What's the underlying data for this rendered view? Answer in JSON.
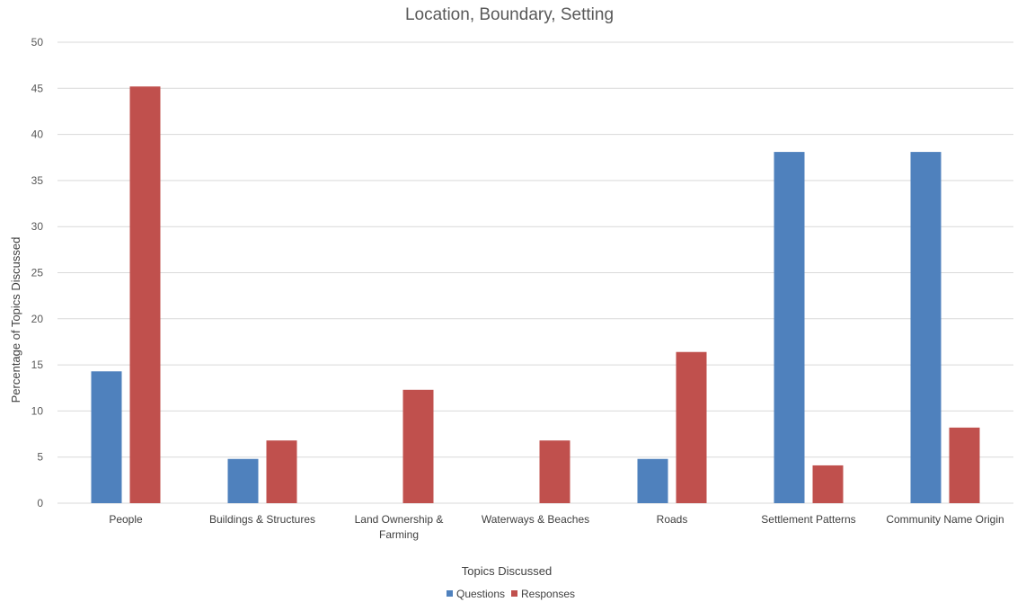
{
  "chart_data": {
    "type": "bar",
    "title": "Location, Boundary, Setting",
    "xlabel": "Topics Discussed",
    "ylabel": "Percentage of Topics Discussed",
    "ylim": [
      0,
      50
    ],
    "yticks": [
      0,
      5,
      10,
      15,
      20,
      25,
      30,
      35,
      40,
      45,
      50
    ],
    "grid": true,
    "legend_position": "bottom",
    "categories": [
      [
        "People"
      ],
      [
        "Buildings & Structures"
      ],
      [
        "Land Ownership &",
        "Farming"
      ],
      [
        "Waterways & Beaches"
      ],
      [
        "Roads"
      ],
      [
        "Settlement Patterns"
      ],
      [
        "Community Name Origin"
      ]
    ],
    "series": [
      {
        "name": "Questions",
        "color": "#4f81bd",
        "values": [
          14.3,
          4.8,
          0,
          0,
          4.8,
          38.1,
          38.1
        ]
      },
      {
        "name": "Responses",
        "color": "#c0504d",
        "values": [
          45.2,
          6.8,
          12.3,
          6.8,
          16.4,
          4.1,
          8.2
        ]
      }
    ]
  }
}
